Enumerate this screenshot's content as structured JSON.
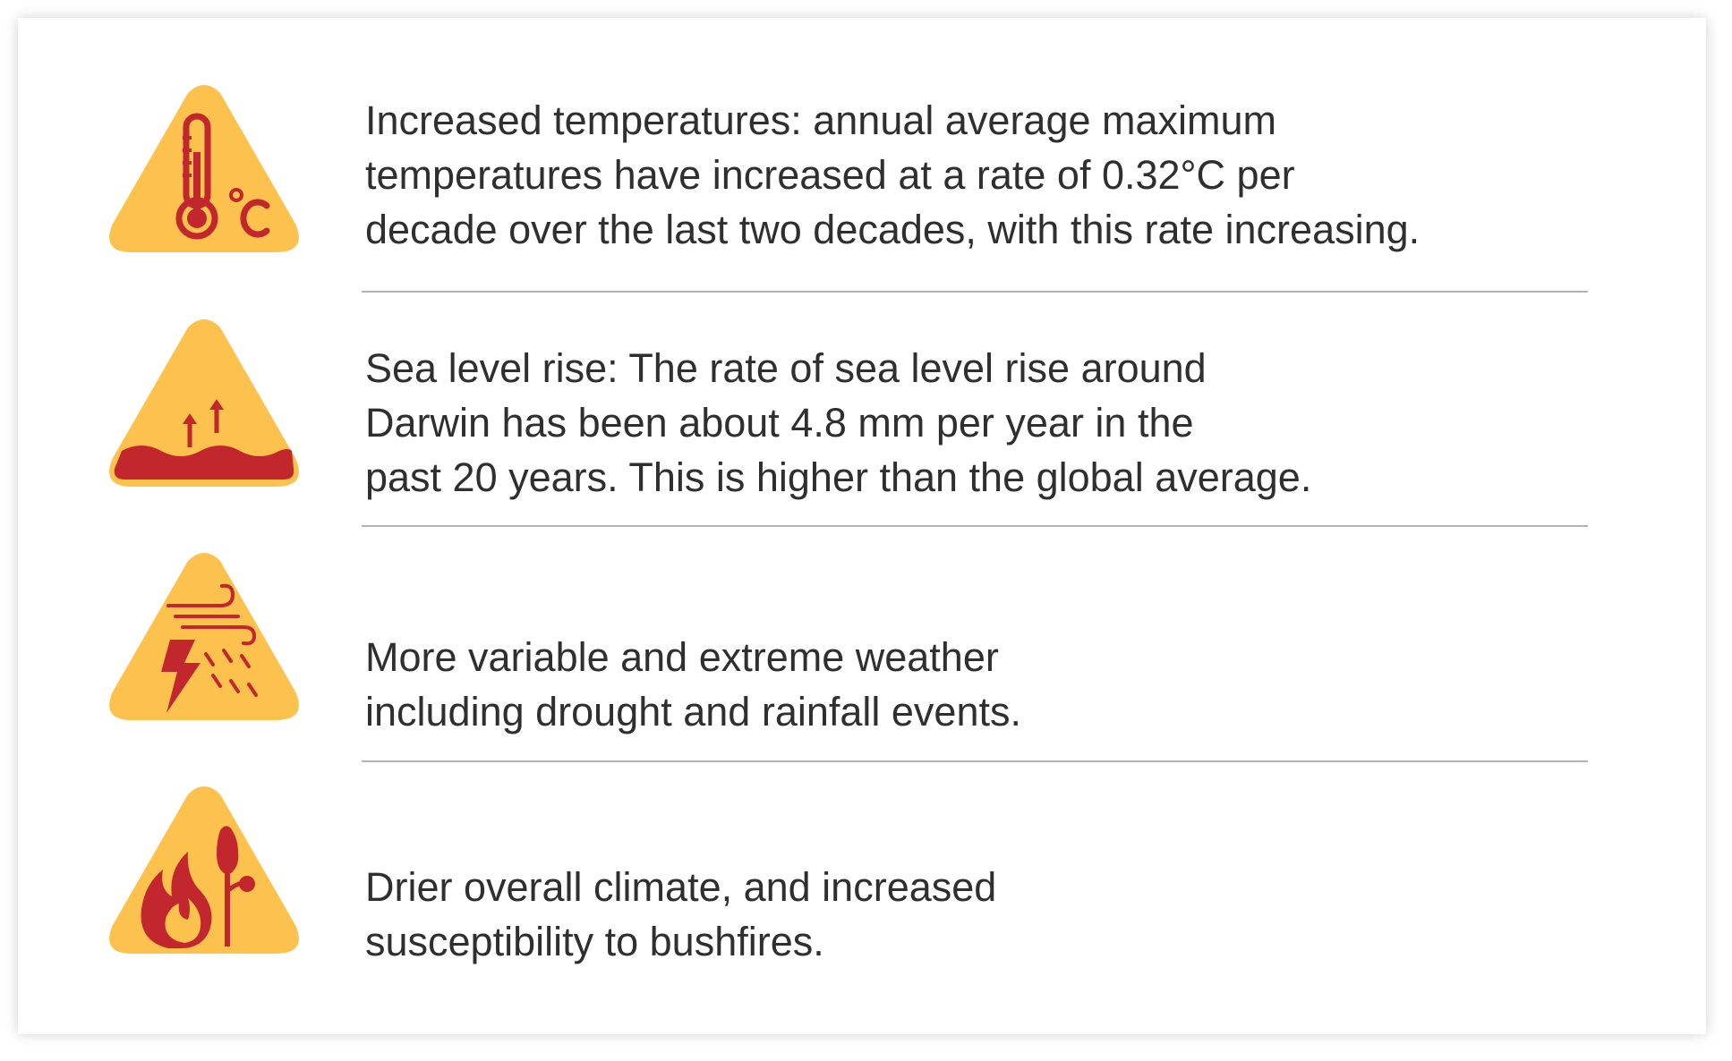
{
  "colors": {
    "icon_fill": "#fcc24d",
    "icon_accent": "#c1272d",
    "text": "#2f2f2f",
    "divider": "#b3b3b3"
  },
  "items": [
    {
      "icon": "thermometer-celsius-icon",
      "text": "Increased temperatures: annual average maximum\ntemperatures have increased at a rate of 0.32°C per\ndecade over the last two decades, with this rate increasing."
    },
    {
      "icon": "sea-level-rise-icon",
      "text": "Sea level rise: The rate of sea level rise around\nDarwin has been about 4.8 mm per year in the\npast 20 years. This is higher than the global average."
    },
    {
      "icon": "extreme-weather-icon",
      "text": "More variable and extreme weather\nincluding drought and rainfall events."
    },
    {
      "icon": "bushfire-icon",
      "text": "Drier overall climate, and increased\nsusceptibility to bushfires."
    }
  ]
}
